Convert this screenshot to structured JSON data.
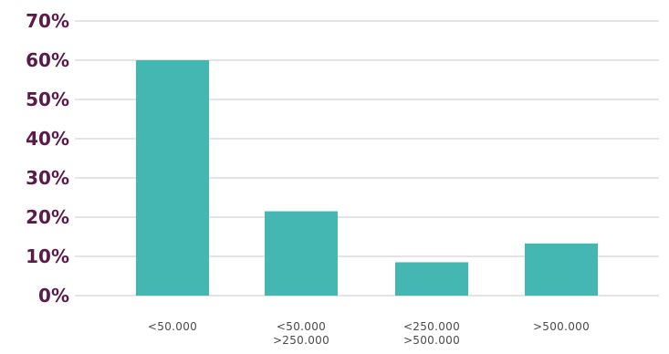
{
  "colors": {
    "bar": "#45b7b2",
    "axis_text": "#5c1a4a",
    "category_text": "#4a4a4a",
    "grid": "#c9c9c9"
  },
  "chart_data": {
    "type": "bar",
    "categories": [
      [
        "<50.000"
      ],
      [
        "<50.000",
        ">250.000"
      ],
      [
        "<250.000",
        ">500.000"
      ],
      [
        ">500.000"
      ]
    ],
    "values": [
      60,
      21.5,
      8.5,
      13.3
    ],
    "ylim": [
      0,
      70
    ],
    "yticks": [
      "0%",
      "10%",
      "20%",
      "30%",
      "40%",
      "50%",
      "60%",
      "70%"
    ],
    "grid": true,
    "legend": false
  }
}
